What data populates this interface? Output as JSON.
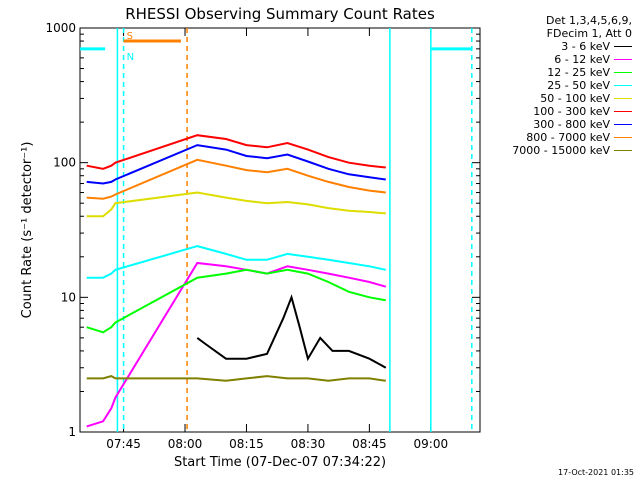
{
  "chart_data": {
    "type": "line",
    "title": "RHESSI Observing Summary Count Rates",
    "xlabel": "Start Time (07-Dec-07 07:34:22)",
    "ylabel": "Count Rate (s⁻¹ detector⁻¹)",
    "y_scale": "log",
    "ylim": [
      1,
      1000
    ],
    "xlim": [
      "07:34:22",
      "09:12:00"
    ],
    "x_ticks": [
      "07:45",
      "08:00",
      "08:15",
      "08:30",
      "08:45",
      "09:00"
    ],
    "y_ticks": [
      "1",
      "10",
      "100",
      "1000"
    ],
    "grid": false,
    "legend_position": "right, outside plot",
    "legend_header": [
      "Det 1,3,4,5,6,9,",
      "FDecim 1, Att 0"
    ],
    "series": [
      {
        "name": "3 - 6 keV",
        "color": "#000000",
        "x": [
          "08:03",
          "08:05",
          "08:10",
          "08:15",
          "08:20",
          "08:24",
          "08:26",
          "08:28",
          "08:30",
          "08:33",
          "08:36",
          "08:40",
          "08:45",
          "08:49"
        ],
        "y": [
          5,
          4.5,
          3.5,
          3.5,
          3.8,
          7,
          10,
          6,
          3.5,
          5,
          4,
          4,
          3.5,
          3
        ]
      },
      {
        "name": "6 - 12 keV",
        "color": "#ff00ff",
        "x": [
          "07:36",
          "07:40",
          "07:42",
          "07:43",
          "08:03",
          "08:10",
          "08:15",
          "08:20",
          "08:25",
          "08:30",
          "08:35",
          "08:40",
          "08:45",
          "08:49"
        ],
        "y": [
          1.1,
          1.2,
          1.5,
          1.8,
          18,
          17,
          16,
          15,
          17,
          16,
          15,
          14,
          13,
          12
        ]
      },
      {
        "name": "12 - 25 keV",
        "color": "#00ff00",
        "x": [
          "07:36",
          "07:40",
          "07:42",
          "07:43",
          "08:03",
          "08:10",
          "08:15",
          "08:20",
          "08:25",
          "08:30",
          "08:35",
          "08:40",
          "08:45",
          "08:49"
        ],
        "y": [
          6,
          5.5,
          6,
          6.5,
          14,
          15,
          16,
          15,
          16,
          15,
          13,
          11,
          10,
          9.5
        ]
      },
      {
        "name": "25 - 50 keV",
        "color": "#00ffff",
        "x": [
          "07:36",
          "07:40",
          "07:42",
          "07:43",
          "08:03",
          "08:10",
          "08:15",
          "08:20",
          "08:25",
          "08:30",
          "08:35",
          "08:40",
          "08:45",
          "08:49"
        ],
        "y": [
          14,
          14,
          15,
          16,
          24,
          21,
          19,
          19,
          21,
          20,
          19,
          18,
          17,
          16
        ]
      },
      {
        "name": "50 - 100 keV",
        "color": "#dddd00",
        "x": [
          "07:36",
          "07:40",
          "07:42",
          "07:43",
          "08:03",
          "08:10",
          "08:15",
          "08:20",
          "08:25",
          "08:30",
          "08:35",
          "08:40",
          "08:45",
          "08:49"
        ],
        "y": [
          40,
          40,
          45,
          50,
          60,
          55,
          52,
          50,
          51,
          49,
          46,
          44,
          43,
          42
        ]
      },
      {
        "name": "100 - 300 keV",
        "color": "#ff0000",
        "x": [
          "07:36",
          "07:40",
          "07:42",
          "07:43",
          "08:03",
          "08:10",
          "08:15",
          "08:20",
          "08:25",
          "08:30",
          "08:35",
          "08:40",
          "08:45",
          "08:49"
        ],
        "y": [
          95,
          90,
          95,
          100,
          160,
          150,
          135,
          130,
          140,
          125,
          110,
          100,
          95,
          92
        ]
      },
      {
        "name": "300 - 800 keV",
        "color": "#0000ff",
        "x": [
          "07:36",
          "07:40",
          "07:42",
          "07:43",
          "08:03",
          "08:10",
          "08:15",
          "08:20",
          "08:25",
          "08:30",
          "08:35",
          "08:40",
          "08:45",
          "08:49"
        ],
        "y": [
          72,
          70,
          72,
          75,
          135,
          125,
          112,
          108,
          115,
          102,
          90,
          82,
          78,
          75
        ]
      },
      {
        "name": "800 - 7000 keV",
        "color": "#ff8000",
        "x": [
          "07:36",
          "07:40",
          "07:42",
          "07:43",
          "08:03",
          "08:10",
          "08:15",
          "08:20",
          "08:25",
          "08:30",
          "08:35",
          "08:40",
          "08:45",
          "08:49"
        ],
        "y": [
          55,
          54,
          56,
          58,
          105,
          95,
          88,
          85,
          90,
          80,
          72,
          66,
          62,
          60
        ]
      },
      {
        "name": "7000 - 15000 keV",
        "color": "#808000",
        "x": [
          "07:36",
          "07:40",
          "07:42",
          "07:43",
          "08:03",
          "08:10",
          "08:15",
          "08:20",
          "08:25",
          "08:30",
          "08:35",
          "08:40",
          "08:45",
          "08:49"
        ],
        "y": [
          2.5,
          2.5,
          2.6,
          2.5,
          2.5,
          2.4,
          2.5,
          2.6,
          2.5,
          2.5,
          2.4,
          2.5,
          2.5,
          2.4
        ]
      }
    ],
    "intervals": [
      {
        "label": "",
        "color": "#00ffff",
        "start": "07:34:22",
        "end": "07:40:30",
        "y": 700
      },
      {
        "label": "S",
        "color": "#ff8000",
        "start": "07:45:00",
        "end": "07:59:00",
        "y": 800
      },
      {
        "label": "N",
        "color": "#00ffff",
        "start": "07:45:00",
        "end": "07:45:00",
        "y": 700
      },
      {
        "label": "",
        "color": "#00ffff",
        "start": "09:00:00",
        "end": "09:10:00",
        "y": 700
      }
    ],
    "markers": [
      {
        "type": "solid",
        "color": "#00ffff",
        "time": "07:43:30"
      },
      {
        "type": "dashed",
        "color": "#00ffff",
        "time": "07:45:00"
      },
      {
        "type": "dashed",
        "color": "#ff8000",
        "time": "08:00:30"
      },
      {
        "type": "solid",
        "color": "#00ffff",
        "time": "08:50:00"
      },
      {
        "type": "solid",
        "color": "#00ffff",
        "time": "09:00:00"
      },
      {
        "type": "dashed",
        "color": "#00ffff",
        "time": "09:10:00"
      }
    ]
  },
  "footer_stamp": "17-Oct-2021 01:35"
}
